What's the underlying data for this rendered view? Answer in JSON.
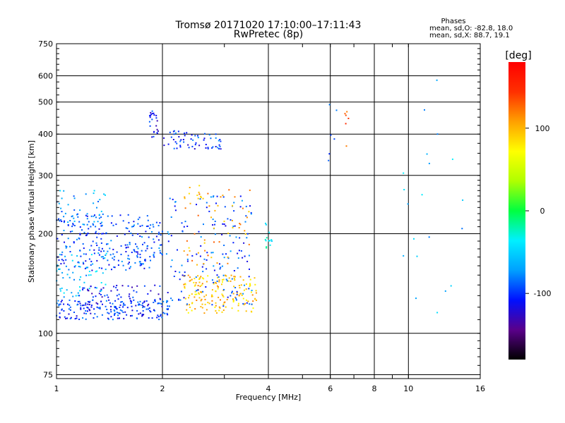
{
  "chart_data": {
    "type": "scatter",
    "title": "Tromsø 20171020 17:10:00–17:11:43",
    "subtitle": "RwPretec (8p)",
    "xlabel": "Frequency [MHz]",
    "ylabel": "Stationary phase Virtual Height [km]",
    "x_scale": "log",
    "y_scale": "log",
    "xlim": [
      1,
      16
    ],
    "ylim": [
      73,
      750
    ],
    "x_ticks": [
      1,
      2,
      4,
      6,
      8,
      10,
      16
    ],
    "x_ticklabels": [
      "1",
      "2",
      "4",
      "6",
      "8",
      "10",
      "16"
    ],
    "y_ticks": [
      75,
      100,
      200,
      300,
      400,
      500,
      600,
      750
    ],
    "y_ticklabels": [
      "75",
      "100",
      "200",
      "300",
      "400",
      "500",
      "600",
      "750"
    ],
    "grid": true,
    "colorbar": {
      "label": "[deg]",
      "range": [
        -180,
        180
      ],
      "tick_values": [
        100,
        0,
        -100
      ],
      "tick_labels": [
        "100",
        "0",
        "-100"
      ],
      "colors": [
        "#000000",
        "#5a008a",
        "#0010ff",
        "#00a0ff",
        "#00f0ff",
        "#00ff40",
        "#b0ff00",
        "#ffff00",
        "#ffa000",
        "#ff3000",
        "#ff0000"
      ]
    },
    "stats": {
      "heading": "Phases",
      "line1": "mean, sd,O: -82.8, 18.0",
      "line2": "mean, sd,X: 88.7, 19.1"
    },
    "series": [
      {
        "x_range": [
          1.0,
          2.1
        ],
        "y_range": [
          110,
          126
        ],
        "phase": -100,
        "count": 170
      },
      {
        "x_range": [
          1.15,
          2.0
        ],
        "y_range": [
          118,
          140
        ],
        "phase": -110,
        "count": 80
      },
      {
        "x_range": [
          2.3,
          3.7
        ],
        "y_range": [
          115,
          150
        ],
        "phase": 95,
        "count": 170
      },
      {
        "x_range": [
          1.0,
          2.0
        ],
        "y_range": [
          155,
          230
        ],
        "phase": -95,
        "count": 260
      },
      {
        "x_range": [
          1.0,
          1.4
        ],
        "y_range": [
          128,
          175
        ],
        "phase": -60,
        "count": 60
      },
      {
        "x_range": [
          1.0,
          1.4
        ],
        "y_range": [
          210,
          270
        ],
        "phase": -70,
        "count": 40
      },
      {
        "x_range": [
          2.05,
          3.6
        ],
        "y_range": [
          120,
          260
        ],
        "phase": -95,
        "count": 160
      },
      {
        "x_range": [
          2.3,
          3.6
        ],
        "y_range": [
          160,
          280
        ],
        "phase": 105,
        "count": 60
      },
      {
        "x_range": [
          2.0,
          2.95
        ],
        "y_range": [
          360,
          410
        ],
        "phase": -100,
        "count": 60
      },
      {
        "x_range": [
          1.83,
          1.95
        ],
        "y_range": [
          390,
          470
        ],
        "phase": -110,
        "count": 25
      },
      {
        "x_range": [
          3.9,
          4.1
        ],
        "y_range": [
          180,
          215
        ],
        "phase": -30,
        "count": 14
      },
      {
        "x_range": [
          5.9,
          6.3
        ],
        "y_range": [
          330,
          500
        ],
        "phase": -80,
        "count": 6
      },
      {
        "x_range": [
          6.6,
          6.8
        ],
        "y_range": [
          360,
          470
        ],
        "phase": 140,
        "count": 6
      },
      {
        "x_range": [
          9.5,
          14.5
        ],
        "y_range": [
          115,
          690
        ],
        "phase": -60,
        "count": 20
      }
    ]
  }
}
